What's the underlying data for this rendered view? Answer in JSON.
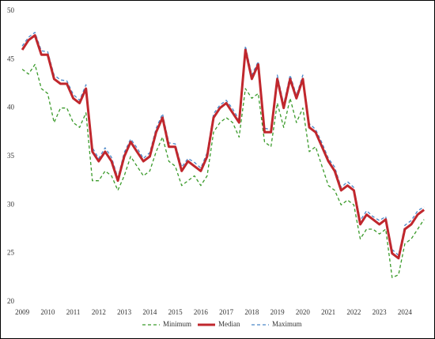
{
  "chart_data": {
    "type": "line",
    "x": [
      2009,
      2009.25,
      2009.5,
      2009.75,
      2010,
      2010.25,
      2010.5,
      2010.75,
      2011,
      2011.25,
      2011.5,
      2011.75,
      2012,
      2012.25,
      2012.5,
      2012.75,
      2013,
      2013.25,
      2013.5,
      2013.75,
      2014,
      2014.25,
      2014.5,
      2014.75,
      2015,
      2015.25,
      2015.5,
      2015.75,
      2016,
      2016.25,
      2016.5,
      2016.75,
      2017,
      2017.25,
      2017.5,
      2017.75,
      2018,
      2018.25,
      2018.5,
      2018.75,
      2019,
      2019.25,
      2019.5,
      2019.75,
      2020,
      2020.25,
      2020.5,
      2020.75,
      2021,
      2021.25,
      2021.5,
      2021.75,
      2022,
      2022.25,
      2022.5,
      2022.75,
      2023,
      2023.25,
      2023.5,
      2023.75,
      2024,
      2024.25,
      2024.5,
      2024.75
    ],
    "series": [
      {
        "name": "Minimum",
        "color": "#3a9a2a",
        "dash": "dashed",
        "values": [
          44,
          43.5,
          44.5,
          42,
          41.5,
          38.5,
          40,
          40,
          38.5,
          38,
          39.5,
          32.5,
          32.5,
          33.5,
          33,
          31.5,
          33,
          35,
          34,
          33,
          33.5,
          35.5,
          37,
          34.5,
          34,
          32,
          32.5,
          33,
          32,
          33,
          37.5,
          38.5,
          39,
          38.5,
          37,
          42,
          41,
          41.5,
          36.5,
          36,
          40.5,
          38,
          41,
          38.5,
          40,
          35.5,
          36,
          34,
          32,
          31.5,
          30,
          30.5,
          30,
          26.5,
          27.5,
          27.5,
          27,
          27.5,
          22.5,
          22.8,
          26,
          26.5,
          27.5,
          28.5
        ]
      },
      {
        "name": "Median",
        "color": "#c0272d",
        "dash": "solid",
        "values": [
          46,
          47,
          47.5,
          45.5,
          45.5,
          43,
          42.5,
          42.5,
          41,
          40.5,
          42,
          35.5,
          34.5,
          35.5,
          34.5,
          32.5,
          35,
          36.5,
          35.5,
          34.5,
          35,
          37.5,
          39,
          36,
          36,
          33.5,
          34.5,
          34,
          33.5,
          35,
          39,
          40,
          40.5,
          39.5,
          38.5,
          46,
          43,
          44.5,
          37.5,
          37.5,
          43,
          40,
          43,
          41,
          43,
          38,
          37.5,
          36,
          34.5,
          33.5,
          31.5,
          32,
          31.5,
          28,
          29,
          28.5,
          28,
          28.5,
          25,
          24.5,
          27.5,
          28,
          29,
          29.5
        ]
      },
      {
        "name": "Maximum",
        "color": "#4a86c8",
        "dash": "dashed",
        "values": [
          46.4,
          47.3,
          47.8,
          45.9,
          45.8,
          43.4,
          42.9,
          42.8,
          41.4,
          40.8,
          42.4,
          35.9,
          34.8,
          35.9,
          34.9,
          32.8,
          35.4,
          36.8,
          35.9,
          34.8,
          35.4,
          37.9,
          39.4,
          36.4,
          36.3,
          33.9,
          34.8,
          34.4,
          33.8,
          35.4,
          39.4,
          40.3,
          40.8,
          39.9,
          38.8,
          46.4,
          43.4,
          44.8,
          37.9,
          37.8,
          43.4,
          40.4,
          43.4,
          41.3,
          43.4,
          38.4,
          37.8,
          36.4,
          34.8,
          33.9,
          31.8,
          32.4,
          31.8,
          28.4,
          29.4,
          28.8,
          28.4,
          28.8,
          25.4,
          24.8,
          27.9,
          28.4,
          29.4,
          29.8
        ]
      }
    ],
    "xlim": [
      2008.75,
      2024.87
    ],
    "xticks": [
      2009,
      2010,
      2011,
      2012,
      2013,
      2014,
      2015,
      2016,
      2017,
      2018,
      2019,
      2020,
      2021,
      2022,
      2023,
      2024
    ],
    "ylim": [
      20,
      50
    ],
    "yticks": [
      20,
      25,
      30,
      35,
      40,
      45,
      50
    ],
    "grid": false,
    "legend": "bottom"
  }
}
